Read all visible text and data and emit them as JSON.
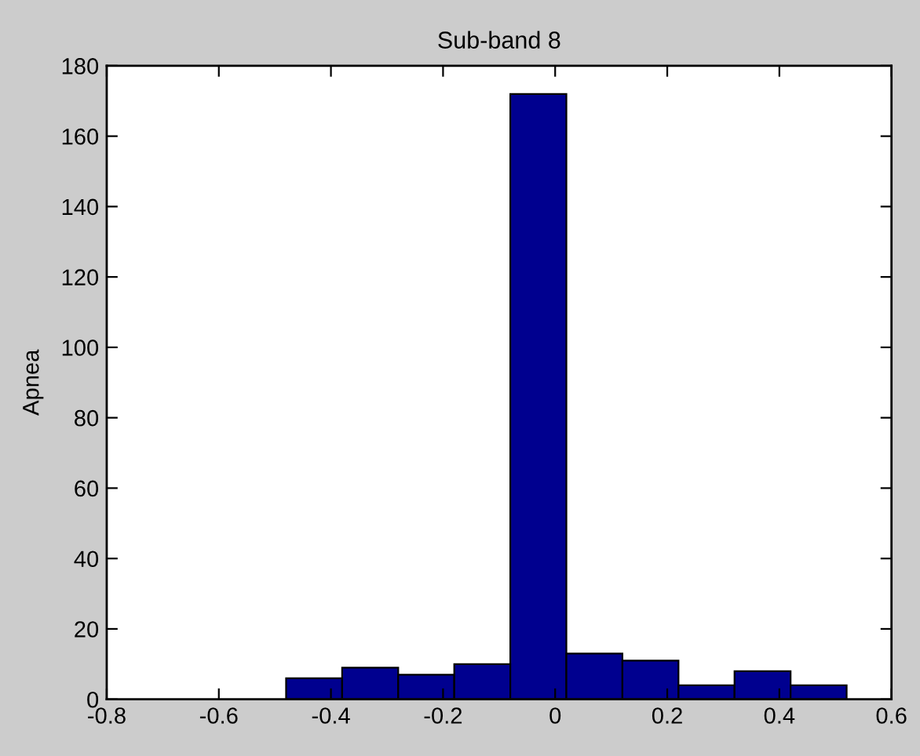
{
  "chart_data": {
    "type": "histogram",
    "title": "Sub-band 8",
    "ylabel": "Apnea",
    "bins": [
      -0.48,
      -0.38,
      -0.28,
      -0.18,
      -0.08,
      0.02,
      0.12,
      0.22,
      0.32,
      0.42,
      0.52
    ],
    "values": [
      6,
      9,
      7,
      10,
      172,
      13,
      11,
      4,
      8,
      4
    ],
    "color": "#00008f",
    "xlim": [
      -0.8,
      0.6
    ],
    "xticks": [
      -0.8,
      -0.6,
      -0.4,
      -0.2,
      0,
      0.2,
      0.4,
      0.6
    ],
    "ylim": [
      0,
      180
    ],
    "yticks": [
      0,
      20,
      40,
      60,
      80,
      100,
      120,
      140,
      160,
      180
    ],
    "grid": false,
    "legend": false
  }
}
